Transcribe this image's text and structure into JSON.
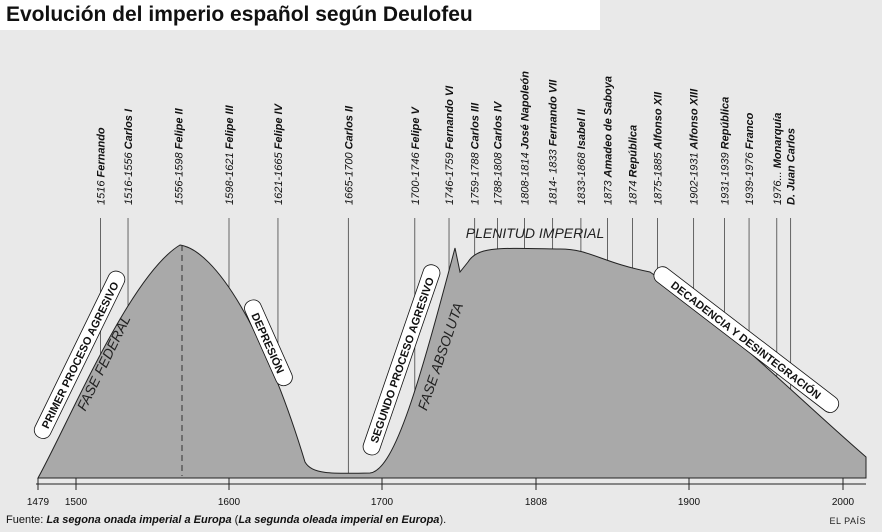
{
  "title": "Evolución del imperio español según Deulofeu",
  "colors": {
    "area": "#a9a9a9",
    "background": "#e9e9e9",
    "ink": "#111111"
  },
  "reigns": [
    {
      "years": "1516",
      "name": "Fernando",
      "x": 1516
    },
    {
      "years": "1516-1556",
      "name": "Carlos I",
      "x": 1534
    },
    {
      "years": "1556-1598",
      "name": "Felipe II",
      "x": 1567
    },
    {
      "years": "1598-1621",
      "name": "Felipe III",
      "x": 1600
    },
    {
      "years": "1621-1665",
      "name": "Felipe IV",
      "x": 1632
    },
    {
      "years": "1665-1700",
      "name": "Carlos II",
      "x": 1678
    },
    {
      "years": "1700-1746",
      "name": "Felipe V",
      "x": 1723
    },
    {
      "years": "1746-1759",
      "name": "Fernando VI",
      "x": 1747
    },
    {
      "years": "1759-1788",
      "name": "Carlos III",
      "x": 1765
    },
    {
      "years": "1788-1808",
      "name": "Carlos IV",
      "x": 1781
    },
    {
      "years": "1808-1814",
      "name": "José Napoleón",
      "x": 1800
    },
    {
      "years": "1814- 1833",
      "name": "Fernando VII",
      "x": 1818
    },
    {
      "years": "1833-1868",
      "name": "Isabel II",
      "x": 1835
    },
    {
      "years": "1873",
      "name": "Amadeo de Saboya",
      "x": 1851
    },
    {
      "years": "1874",
      "name": "República",
      "x": 1866
    },
    {
      "years": "1875-1885",
      "name": "Alfonso XII",
      "x": 1881
    },
    {
      "years": "1902-1931",
      "name": "Alfonso XIII",
      "x": 1903
    },
    {
      "years": "1931-1939",
      "name": "República",
      "x": 1923
    },
    {
      "years": "1939-1976",
      "name": "Franco",
      "x": 1939
    },
    {
      "years": "1976...",
      "name": "Monarquía",
      "x": 1957
    },
    {
      "years": "",
      "name": "D. Juan Carlos",
      "x": 1966
    }
  ],
  "phases": [
    {
      "text": "PRIMER PROCESO AGRESIVO",
      "style": "boxed"
    },
    {
      "text": "FASE FEDERAL",
      "style": "italic"
    },
    {
      "text": "DEPRESIÓN",
      "style": "boxed"
    },
    {
      "text": "SEGUNDO PROCESO AGRESIVO",
      "style": "boxed"
    },
    {
      "text": "FASE ABSOLUTA",
      "style": "italic"
    },
    {
      "text": "PLENITUD IMPERIAL",
      "style": "italic"
    },
    {
      "text": "DECADENCIA Y DESINTEGRACIÓN",
      "style": "boxed"
    }
  ],
  "axis": {
    "ticks": [
      "1479",
      "1500",
      "1600",
      "1700",
      "1808",
      "1900",
      "2000"
    ]
  },
  "footer": {
    "prefix": "Fuente: ",
    "source_ca": "La segona onada imperial a Europa",
    "open": " (",
    "source_es": "La segunda oleada imperial en Europa",
    "close": ")."
  },
  "credit": "EL PAÍS"
}
